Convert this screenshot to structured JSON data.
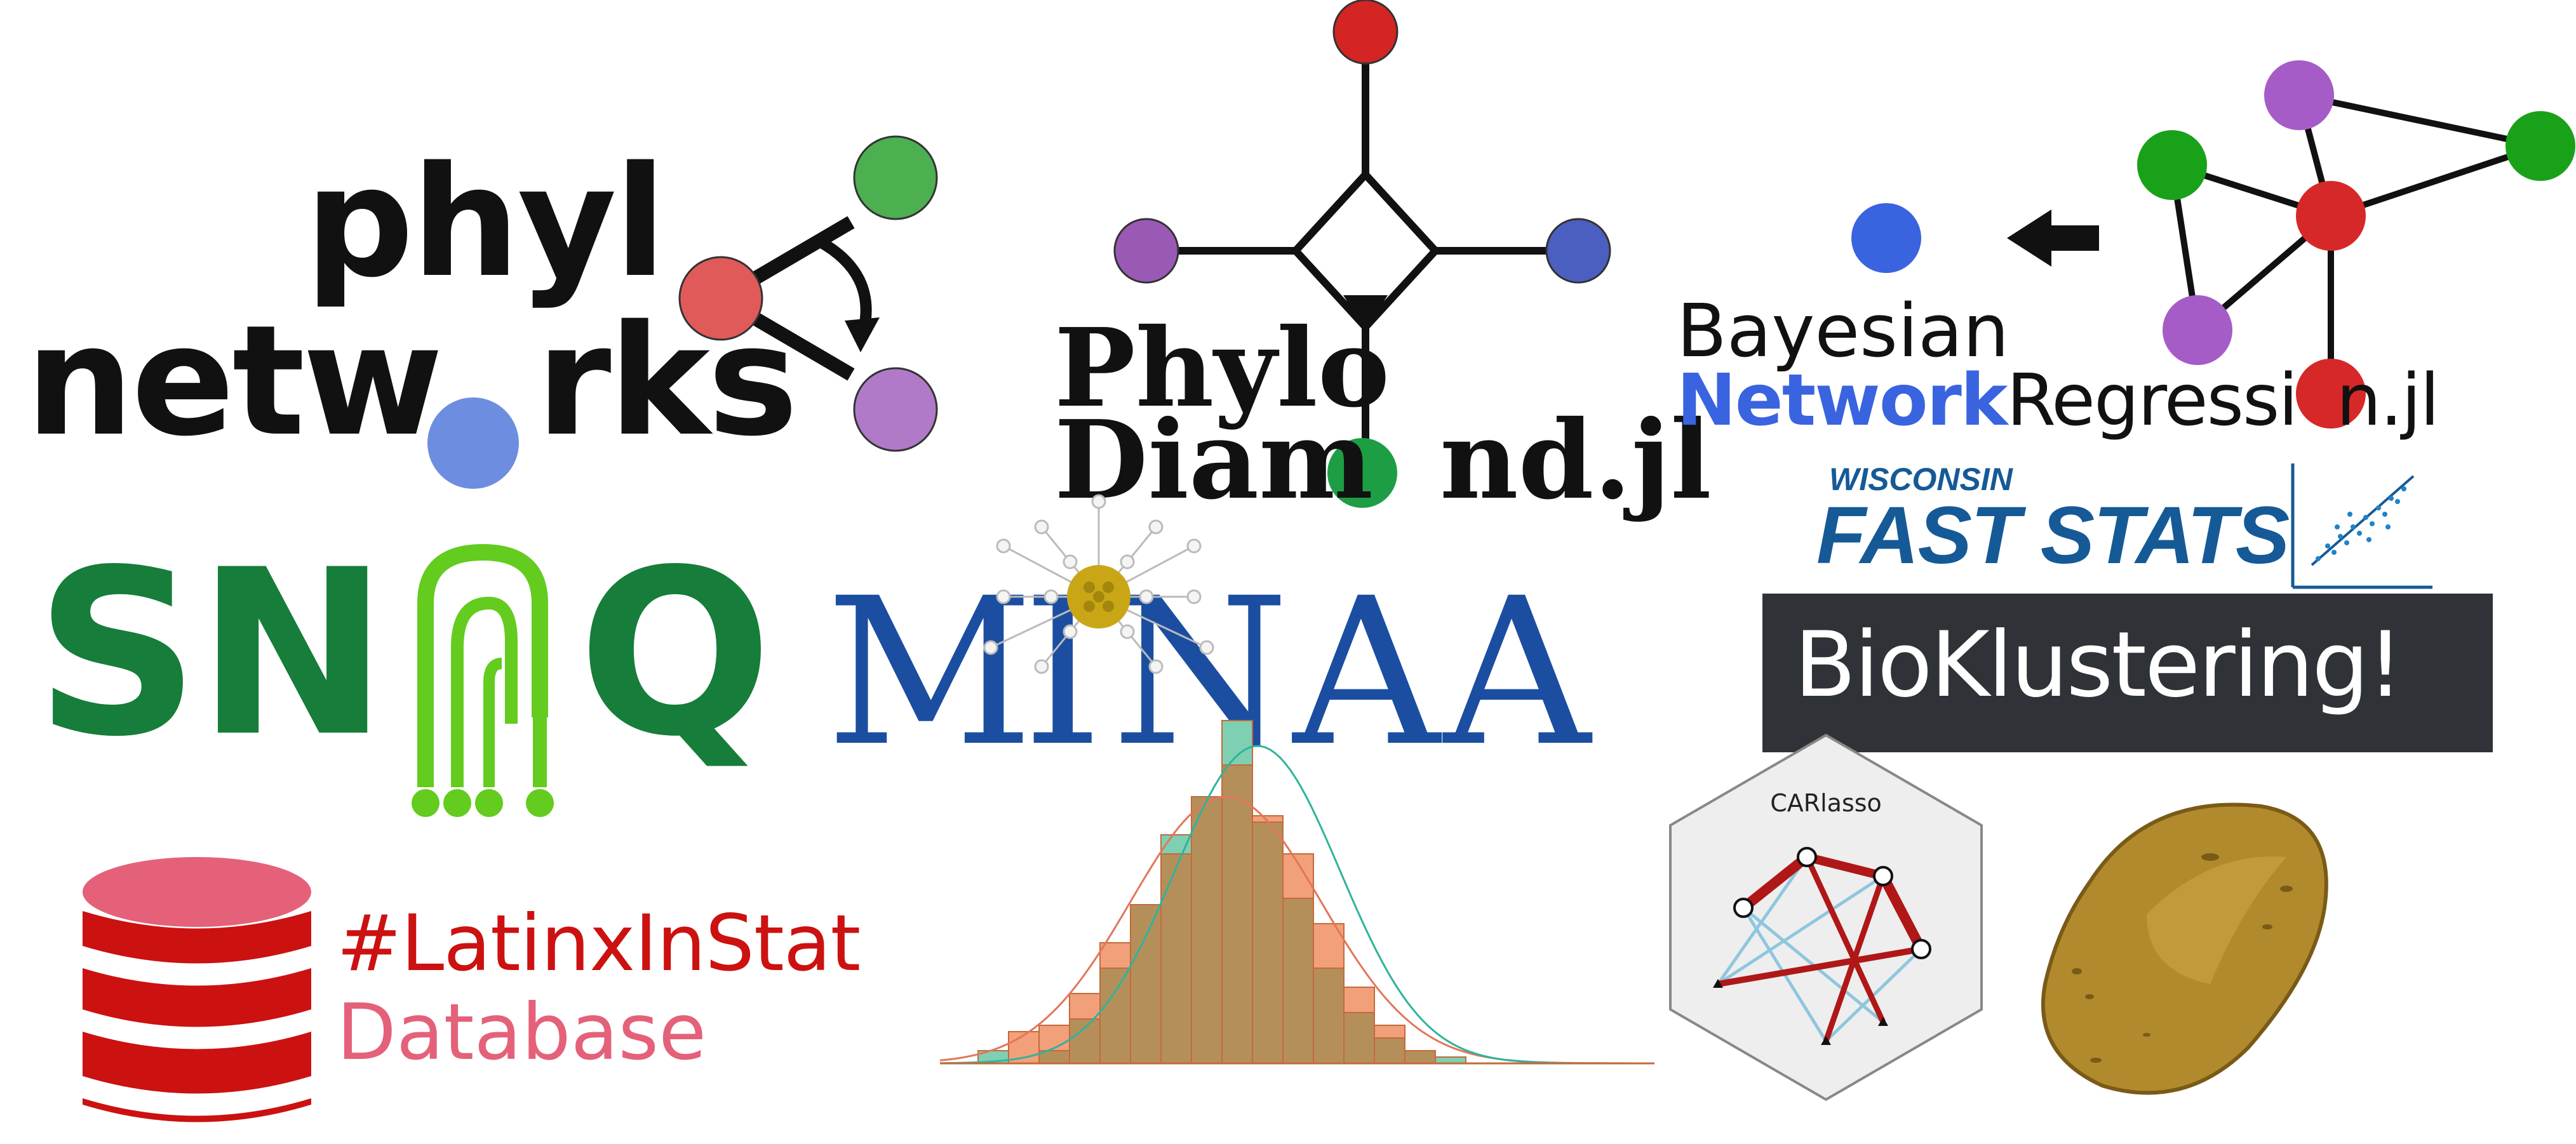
{
  "logos": {
    "phylonetworks": {
      "line1": "phyl",
      "line2a": "netw",
      "line2b": "rks",
      "colors": {
        "red": "#e05a5a",
        "green": "#4caf50",
        "purple": "#b07ac8",
        "blue": "#6d8ee0"
      }
    },
    "phylodiamond": {
      "line1": "Phylo",
      "line2a": "Diam",
      "line2b": "nd.jl",
      "colors": {
        "red": "#d42424",
        "purple": "#9b59b6",
        "blue": "#4a5fc0",
        "green": "#1e9e44"
      }
    },
    "bnr": {
      "line1": "Bayesian",
      "line2a": "Network",
      "line2b": "Regressi",
      "line2c": "n.jl",
      "colors": {
        "blue": "#3a63e0",
        "green": "#1aa11a",
        "purple": "#a55cc7",
        "red": "#d62828"
      }
    },
    "snaq": {
      "text_s": "S",
      "text_n": "N",
      "text_q": "Q",
      "colors": {
        "dark": "#167d3a",
        "light": "#63cc1e"
      }
    },
    "minaa": {
      "text_m": "M",
      "text_i": "I",
      "text_naa": "NAA",
      "colors": {
        "text": "#1b4ea1",
        "flower": "#c9a616"
      }
    },
    "fast_stats": {
      "line1": "WISCONSIN",
      "line2": "FAST STATS",
      "colors": {
        "text": "#155a96"
      }
    },
    "bioklustering": {
      "label": "BioKlustering!",
      "colors": {
        "bg": "#2f3236",
        "text": "#ffffff"
      }
    },
    "latinx": {
      "line1": "#LatinxInStat",
      "line2": "Database",
      "colors": {
        "red": "#cc1111",
        "pink": "#e46179"
      }
    },
    "histogram": {
      "colors": {
        "orange": "#f2a07a",
        "teal": "#7fcfb3",
        "overlap": "#b58f5a"
      }
    },
    "carlasso": {
      "title": "CARlasso",
      "colors": {
        "hex": "#eeeeee",
        "edge_strong": "#b01717",
        "edge_light": "#8fc6de"
      }
    },
    "potato": {
      "colors": {
        "skin": "#b08a2c",
        "dark": "#7a5a17"
      }
    }
  }
}
